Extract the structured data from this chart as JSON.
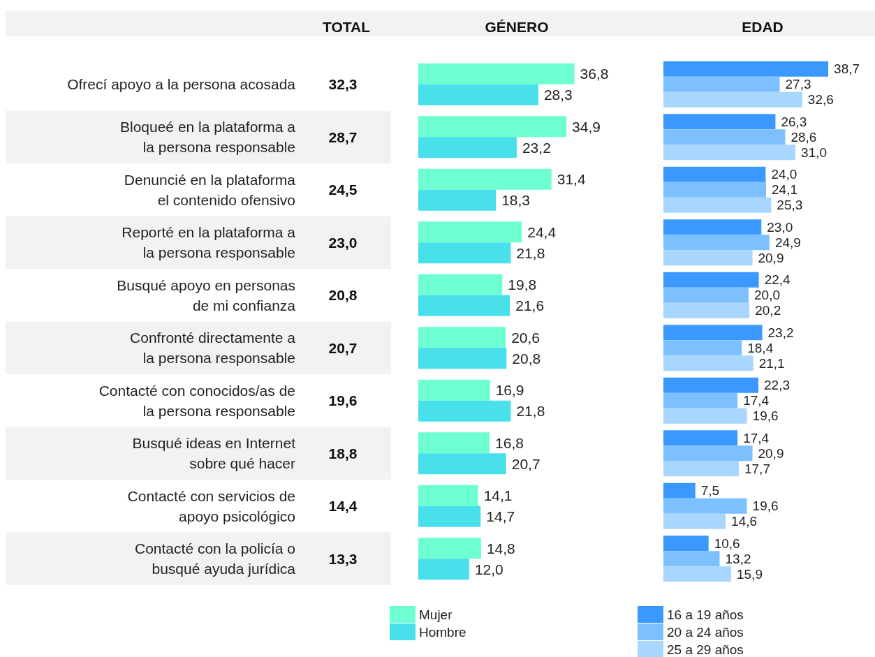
{
  "chart_data": [
    {
      "type": "other",
      "title": "TOTAL",
      "categories": [
        "Ofrecí apoyo a la persona acosada",
        "Bloqueé en la plataforma a\nla persona responsable",
        "Denuncié en la plataforma\nel contenido ofensivo",
        "Reporté en la plataforma a\nla persona responsable",
        "Busqué apoyo en personas\nde mi confianza",
        "Confronté directamente a\nla persona responsable",
        "Contacté con conocidos/as de\nla persona responsable",
        "Busqué ideas en Internet\nsobre qué hacer",
        "Contacté con servicios de\napoyo psicológico",
        "Contacté con la policía o\nbusqué ayuda jurídica"
      ],
      "value_labels": [
        "32,3",
        "28,7",
        "24,5",
        "23,0",
        "20,8",
        "20,7",
        "19,6",
        "18,8",
        "14,4",
        "13,3"
      ]
    },
    {
      "type": "bar",
      "orientation": "horizontal",
      "title": "GÉNERO",
      "categories": [
        null,
        null,
        null,
        null,
        null,
        null,
        null,
        null,
        null,
        null
      ],
      "legend": "bottom",
      "series": [
        {
          "name": "Mujer",
          "color": "#6dffd1",
          "values": [
            36.8,
            34.9,
            31.4,
            24.4,
            19.8,
            20.6,
            16.9,
            16.8,
            14.1,
            14.8
          ],
          "value_labels": [
            "36,8",
            "34,9",
            "31,4",
            "24,4",
            "19,8",
            "20,6",
            "16,9",
            "16,8",
            "14,1",
            "14,8"
          ]
        },
        {
          "name": "Hombre",
          "color": "#48e0ea",
          "values": [
            28.3,
            23.2,
            18.3,
            21.8,
            21.6,
            20.8,
            21.8,
            20.7,
            14.7,
            12.0
          ],
          "value_labels": [
            "28,3",
            "23,2",
            "18,3",
            "21,8",
            "21,6",
            "20,8",
            "21,8",
            "20,7",
            "14,7",
            "12,0"
          ]
        }
      ]
    },
    {
      "type": "bar",
      "orientation": "horizontal",
      "title": "EDAD",
      "categories": [
        null,
        null,
        null,
        null,
        null,
        null,
        null,
        null,
        null,
        null
      ],
      "legend": "bottom",
      "series": [
        {
          "name": "16 a 19 años",
          "color": "#3a98ff",
          "values": [
            38.7,
            26.3,
            24.0,
            23.0,
            22.4,
            23.2,
            22.3,
            17.4,
            7.5,
            10.6
          ],
          "value_labels": [
            "38,7",
            "26,3",
            "24,0",
            "23,0",
            "22,4",
            "23,2",
            "22,3",
            "17,4",
            "7,5",
            "10,6"
          ]
        },
        {
          "name": "20 a 24 años",
          "color": "#7cc0ff",
          "values": [
            27.3,
            28.6,
            24.1,
            24.9,
            20.0,
            18.4,
            17.4,
            20.9,
            19.6,
            13.2
          ],
          "value_labels": [
            "27,3",
            "28,6",
            "24,1",
            "24,9",
            "20,0",
            "18,4",
            "17,4",
            "20,9",
            "19,6",
            "13,2"
          ]
        },
        {
          "name": "25 a 29 años",
          "color": "#a8d6ff",
          "values": [
            32.6,
            31.0,
            25.3,
            20.9,
            20.2,
            21.1,
            19.6,
            17.7,
            14.6,
            15.9
          ],
          "value_labels": [
            "32,6",
            "31,0",
            "25,3",
            "20,9",
            "20,2",
            "21,1",
            "19,6",
            "17,7",
            "14,6",
            "15,9"
          ]
        }
      ]
    }
  ]
}
